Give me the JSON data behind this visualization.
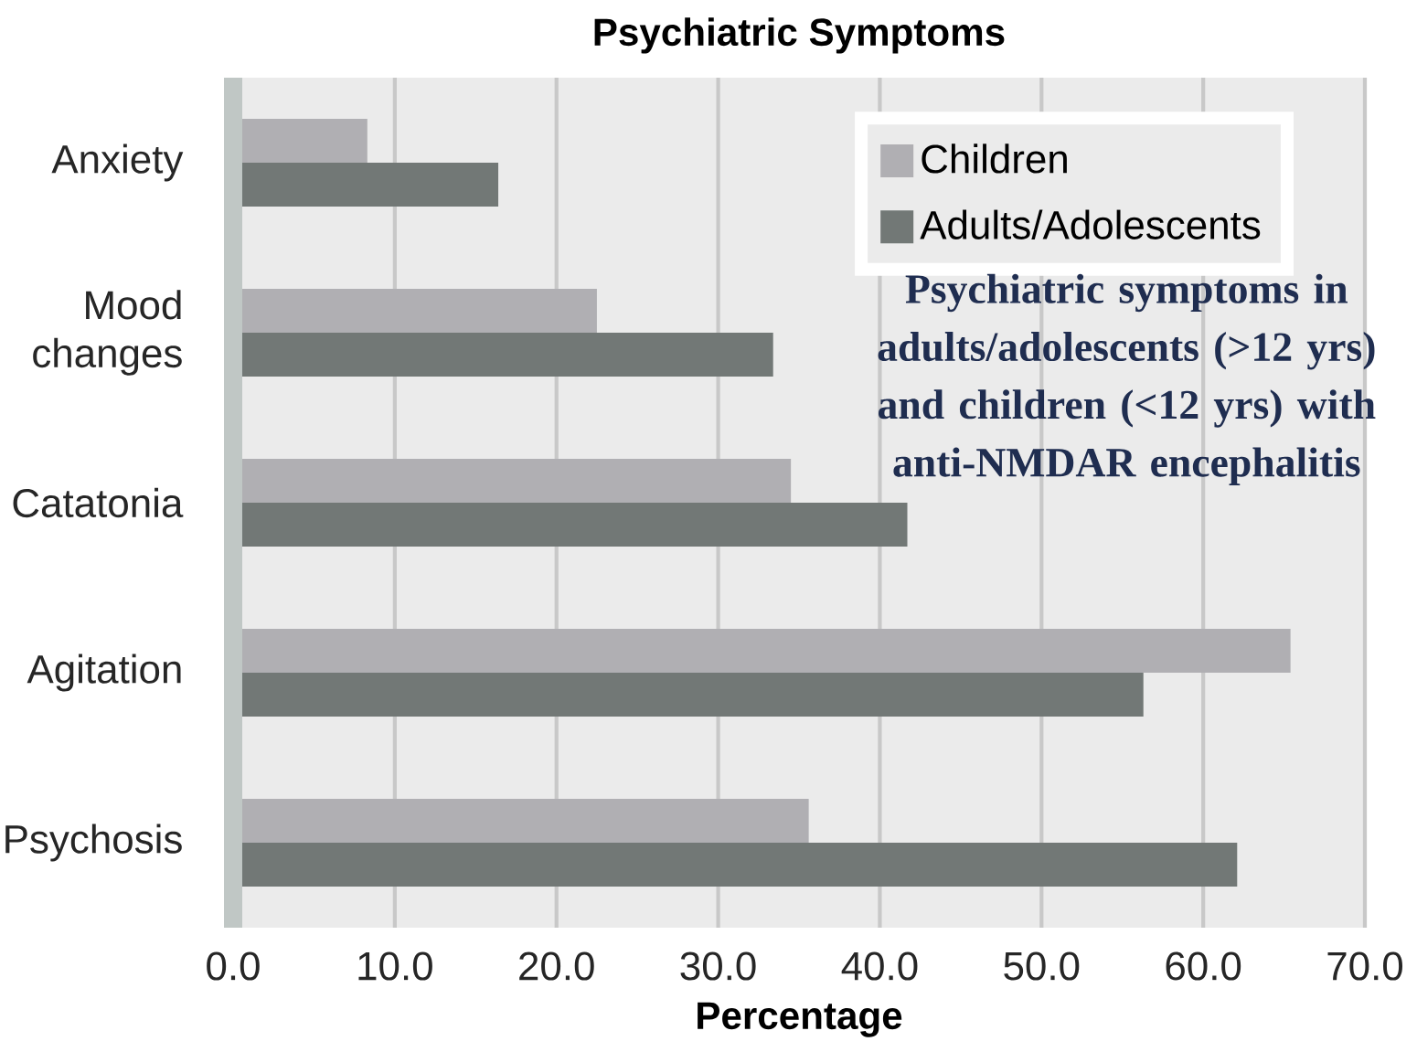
{
  "chart_data": {
    "type": "bar",
    "orientation": "horizontal",
    "title": "Psychiatric Symptoms",
    "xlabel": "Percentage",
    "categories": [
      "Anxiety",
      "Mood changes",
      "Catatonia",
      "Agitation",
      "Psychosis"
    ],
    "series": [
      {
        "name": "Children",
        "color": "#b0afb3",
        "values": [
          8.3,
          22.5,
          34.5,
          65.4,
          35.6
        ]
      },
      {
        "name": "Adults/Adolescents",
        "color": "#727876",
        "values": [
          16.4,
          33.4,
          41.7,
          56.3,
          62.1
        ]
      }
    ],
    "xlim": [
      0,
      70
    ],
    "xticks": [
      {
        "value": 0,
        "label": "0.0"
      },
      {
        "value": 10,
        "label": "10.0"
      },
      {
        "value": 20,
        "label": "20.0"
      },
      {
        "value": 30,
        "label": "30.0"
      },
      {
        "value": 40,
        "label": "40.0"
      },
      {
        "value": 50,
        "label": "50.0"
      },
      {
        "value": 60,
        "label": "60.0"
      },
      {
        "value": 70,
        "label": "70.0"
      }
    ],
    "grid": "x",
    "legend": "top right",
    "annotations": [
      "Psychiatric symptoms in adults/adolescents (>12 yrs) and children (<12 yrs) with anti-NMDAR encephalitis"
    ]
  }
}
